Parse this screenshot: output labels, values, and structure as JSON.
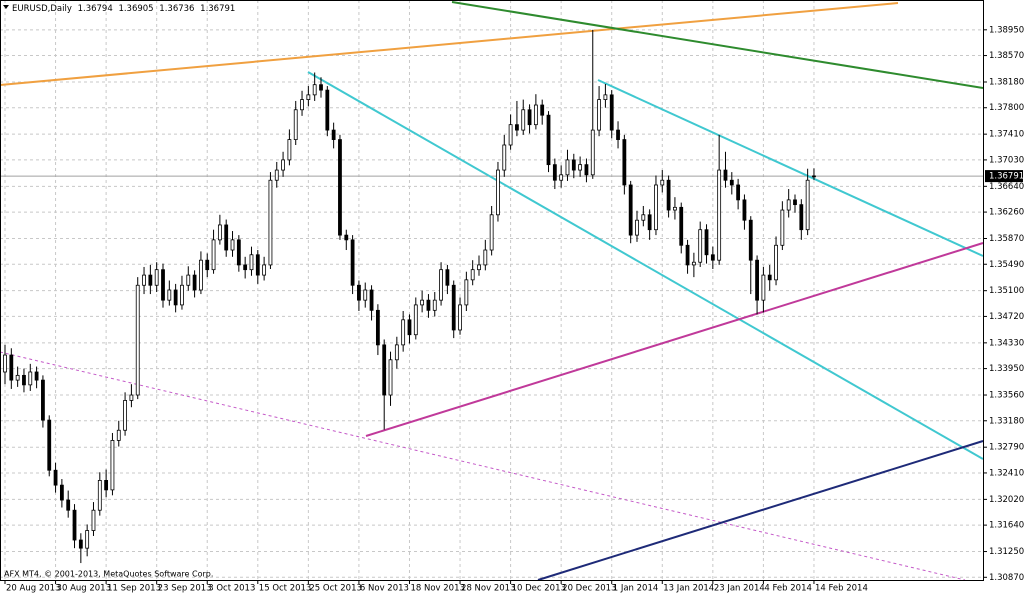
{
  "chart_data": {
    "type": "candlestick",
    "title": "EURUSD,Daily",
    "footer_text": "AFX MT4, © 2001-2013, MetaQuotes Software Corp.",
    "up_color": "#ffffff",
    "down_color": "#000000",
    "wick_color": "#000000",
    "grid": true,
    "categories": [
      "20 Aug 2013",
      null,
      null,
      null,
      null,
      null,
      null,
      null,
      "30 Aug 2013",
      null,
      null,
      null,
      null,
      null,
      null,
      null,
      "11 Sep 2013",
      null,
      null,
      null,
      null,
      null,
      null,
      null,
      "23 Sep 2013",
      null,
      null,
      null,
      null,
      null,
      null,
      null,
      "3 Oct 2013",
      null,
      null,
      null,
      null,
      null,
      null,
      null,
      "15 Oct 2013",
      null,
      null,
      null,
      null,
      null,
      null,
      null,
      "25 Oct 2013",
      null,
      null,
      null,
      null,
      null,
      null,
      null,
      "6 Nov 2013",
      null,
      null,
      null,
      null,
      null,
      null,
      null,
      "18 Nov 2013",
      null,
      null,
      null,
      null,
      null,
      null,
      null,
      "28 Nov 2013",
      null,
      null,
      null,
      null,
      null,
      null,
      null,
      "10 Dec 2013",
      null,
      null,
      null,
      null,
      null,
      null,
      null,
      "20 Dec 2013",
      null,
      null,
      null,
      null,
      null,
      null,
      null,
      "1 Jan 2014",
      null,
      null,
      null,
      null,
      null,
      null,
      null,
      "13 Jan 2014",
      null,
      null,
      null,
      null,
      null,
      null,
      null,
      "23 Jan 2014",
      null,
      null,
      null,
      null,
      null,
      null,
      null,
      "4 Feb 2014",
      null,
      null,
      null,
      null,
      null,
      null,
      null,
      "14 Feb 2014"
    ],
    "open": [
      1.339,
      1.3415,
      1.3378,
      1.3385,
      1.3371,
      1.339,
      1.3378,
      1.3319,
      1.3245,
      1.3223,
      1.3201,
      1.3186,
      1.3142,
      1.313,
      1.3156,
      1.3186,
      1.323,
      1.3216,
      1.3289,
      1.3304,
      1.3348,
      1.3356,
      1.3518,
      1.3533,
      1.3518,
      1.3541,
      1.3496,
      1.3511,
      1.3489,
      1.3518,
      1.3533,
      1.3511,
      1.3555,
      1.3541,
      1.3585,
      1.3607,
      1.357,
      1.3585,
      1.3548,
      1.3541,
      1.3563,
      1.3533,
      1.3548,
      1.3673,
      1.3688,
      1.3703,
      1.3733,
      1.3777,
      1.3792,
      1.3799,
      1.3814,
      1.3806,
      1.3747,
      1.3733,
      1.3592,
      1.3585,
      1.3518,
      1.3496,
      1.3511,
      1.3481,
      1.343,
      1.3356,
      1.3408,
      1.343,
      1.3467,
      1.3445,
      1.3489,
      1.3496,
      1.3481,
      1.3496,
      1.3541,
      1.3518,
      1.3452,
      1.3489,
      1.3526,
      1.3541,
      1.3548,
      1.357,
      1.3622,
      1.3688,
      1.3725,
      1.3755,
      1.3747,
      1.3777,
      1.3755,
      1.3784,
      1.3769,
      1.3696,
      1.3673,
      1.3681,
      1.3703,
      1.3688,
      1.3696,
      1.3681,
      1.3747,
      1.3792,
      1.3799,
      1.3747,
      1.3733,
      1.3666,
      1.3592,
      1.3614,
      1.3622,
      1.36,
      1.3666,
      1.3673,
      1.3629,
      1.3633,
      1.3577,
      1.3548,
      1.3552,
      1.36,
      1.3563,
      1.3555,
      1.3688,
      1.3673,
      1.3666,
      1.3644,
      1.3614,
      1.3555,
      1.3496,
      1.3533,
      1.3526,
      1.3577,
      1.3629,
      1.3644,
      1.3637,
      1.36,
      1.36794
    ],
    "high": [
      1.343,
      1.3425,
      1.3398,
      1.3395,
      1.3402,
      1.3398,
      1.3385,
      1.3326,
      1.3256,
      1.3232,
      1.3215,
      1.3195,
      1.3152,
      1.3165,
      1.3198,
      1.3242,
      1.3246,
      1.33,
      1.3318,
      1.336,
      1.3372,
      1.353,
      1.3545,
      1.3548,
      1.3552,
      1.355,
      1.3525,
      1.352,
      1.3532,
      1.3546,
      1.354,
      1.3568,
      1.3565,
      1.36,
      1.3622,
      1.3615,
      1.3598,
      1.3592,
      1.356,
      1.3575,
      1.357,
      1.356,
      1.3685,
      1.37,
      1.3715,
      1.3748,
      1.379,
      1.3805,
      1.3812,
      1.3832,
      1.3825,
      1.3812,
      1.3758,
      1.374,
      1.36,
      1.3592,
      1.3525,
      1.3522,
      1.3518,
      1.349,
      1.3438,
      1.342,
      1.3442,
      1.348,
      1.3475,
      1.35,
      1.351,
      1.3505,
      1.3508,
      1.3552,
      1.3548,
      1.3525,
      1.35,
      1.3538,
      1.3555,
      1.3562,
      1.3585,
      1.3635,
      1.37,
      1.374,
      1.377,
      1.379,
      1.3792,
      1.3785,
      1.38,
      1.3792,
      1.3775,
      1.3705,
      1.3695,
      1.3718,
      1.3712,
      1.3708,
      1.3705,
      1.3895,
      1.3812,
      1.3815,
      1.3806,
      1.376,
      1.374,
      1.3672,
      1.3628,
      1.3635,
      1.363,
      1.368,
      1.3688,
      1.368,
      1.3648,
      1.364,
      1.3585,
      1.3566,
      1.3612,
      1.3608,
      1.3575,
      1.374,
      1.3715,
      1.3685,
      1.3675,
      1.3652,
      1.362,
      1.3562,
      1.3545,
      1.3548,
      1.359,
      1.3642,
      1.366,
      1.3652,
      1.3645,
      1.369,
      1.36905
    ],
    "low": [
      1.3372,
      1.3365,
      1.3368,
      1.336,
      1.3362,
      1.3366,
      1.3308,
      1.3236,
      1.3212,
      1.319,
      1.3175,
      1.313,
      1.3108,
      1.3118,
      1.3148,
      1.3178,
      1.3205,
      1.3208,
      1.328,
      1.3296,
      1.3338,
      1.335,
      1.3505,
      1.3505,
      1.3508,
      1.3485,
      1.3488,
      1.3478,
      1.3482,
      1.351,
      1.35,
      1.3505,
      1.353,
      1.3535,
      1.3578,
      1.356,
      1.356,
      1.3538,
      1.3528,
      1.3532,
      1.352,
      1.3525,
      1.3542,
      1.3662,
      1.3678,
      1.3695,
      1.3725,
      1.3768,
      1.3782,
      1.379,
      1.3795,
      1.3738,
      1.372,
      1.3585,
      1.357,
      1.3505,
      1.348,
      1.3485,
      1.3466,
      1.3415,
      1.3305,
      1.334,
      1.3395,
      1.342,
      1.3432,
      1.3438,
      1.3478,
      1.347,
      1.3472,
      1.3488,
      1.3505,
      1.344,
      1.3445,
      1.348,
      1.3518,
      1.3532,
      1.354,
      1.3562,
      1.3612,
      1.3678,
      1.3718,
      1.3738,
      1.374,
      1.3742,
      1.3748,
      1.3755,
      1.3685,
      1.366,
      1.3662,
      1.3672,
      1.3676,
      1.3678,
      1.367,
      1.3675,
      1.3738,
      1.378,
      1.3735,
      1.372,
      1.3652,
      1.358,
      1.3582,
      1.3605,
      1.3585,
      1.3592,
      1.3655,
      1.3618,
      1.3615,
      1.3565,
      1.3535,
      1.353,
      1.3545,
      1.355,
      1.3542,
      1.3548,
      1.3662,
      1.3652,
      1.363,
      1.36,
      1.3505,
      1.3475,
      1.3478,
      1.351,
      1.3518,
      1.357,
      1.3618,
      1.3625,
      1.3585,
      1.3592,
      1.36736
    ],
    "close": [
      1.3415,
      1.3378,
      1.3385,
      1.3371,
      1.339,
      1.3378,
      1.3319,
      1.3245,
      1.3223,
      1.3201,
      1.3186,
      1.3142,
      1.313,
      1.3156,
      1.3186,
      1.323,
      1.3216,
      1.3289,
      1.3304,
      1.3348,
      1.3356,
      1.3518,
      1.3533,
      1.3518,
      1.3541,
      1.3496,
      1.3511,
      1.3489,
      1.3518,
      1.3533,
      1.3511,
      1.3555,
      1.3541,
      1.3585,
      1.3607,
      1.357,
      1.3585,
      1.3548,
      1.3541,
      1.3563,
      1.3533,
      1.3548,
      1.3673,
      1.3688,
      1.3703,
      1.3733,
      1.3777,
      1.3792,
      1.3799,
      1.3814,
      1.3806,
      1.3747,
      1.3733,
      1.3592,
      1.3585,
      1.3518,
      1.3496,
      1.3511,
      1.3481,
      1.343,
      1.3356,
      1.3408,
      1.343,
      1.3467,
      1.3445,
      1.3489,
      1.3496,
      1.3481,
      1.3496,
      1.3541,
      1.3518,
      1.3452,
      1.3489,
      1.3526,
      1.3541,
      1.3548,
      1.357,
      1.3622,
      1.3688,
      1.3725,
      1.3755,
      1.3747,
      1.3777,
      1.3755,
      1.3784,
      1.3769,
      1.3696,
      1.3673,
      1.3681,
      1.3703,
      1.3688,
      1.3696,
      1.3681,
      1.3747,
      1.3792,
      1.3799,
      1.3747,
      1.3733,
      1.3666,
      1.3592,
      1.3614,
      1.3622,
      1.36,
      1.3666,
      1.3673,
      1.3629,
      1.3633,
      1.3577,
      1.3548,
      1.3552,
      1.36,
      1.3563,
      1.3555,
      1.3688,
      1.3673,
      1.3666,
      1.3644,
      1.3614,
      1.3555,
      1.3496,
      1.3533,
      1.3526,
      1.3577,
      1.3629,
      1.3644,
      1.3637,
      1.36,
      1.3673,
      1.36791
    ],
    "ylim": [
      1.3083,
      1.3939
    ],
    "yticks": [
      {
        "value": 1.3087,
        "label": "1.30870"
      },
      {
        "value": 1.3125,
        "label": "1.31250"
      },
      {
        "value": 1.3164,
        "label": "1.31640"
      },
      {
        "value": 1.3202,
        "label": "1.32020"
      },
      {
        "value": 1.3241,
        "label": "1.32410"
      },
      {
        "value": 1.3279,
        "label": "1.32790"
      },
      {
        "value": 1.3318,
        "label": "1.33180"
      },
      {
        "value": 1.3356,
        "label": "1.33560"
      },
      {
        "value": 1.3395,
        "label": "1.33950"
      },
      {
        "value": 1.3433,
        "label": "1.34330"
      },
      {
        "value": 1.3472,
        "label": "1.34720"
      },
      {
        "value": 1.351,
        "label": "1.35100"
      },
      {
        "value": 1.3549,
        "label": "1.35490"
      },
      {
        "value": 1.3587,
        "label": "1.35870"
      },
      {
        "value": 1.3626,
        "label": "1.36260"
      },
      {
        "value": 1.3664,
        "label": "1.36640"
      },
      {
        "value": 1.3703,
        "label": "1.37030"
      },
      {
        "value": 1.3741,
        "label": "1.37410"
      },
      {
        "value": 1.378,
        "label": "1.37800"
      },
      {
        "value": 1.3818,
        "label": "1.38180"
      },
      {
        "value": 1.3857,
        "label": "1.38570"
      },
      {
        "value": 1.3895,
        "label": "1.38950"
      }
    ]
  }
}
